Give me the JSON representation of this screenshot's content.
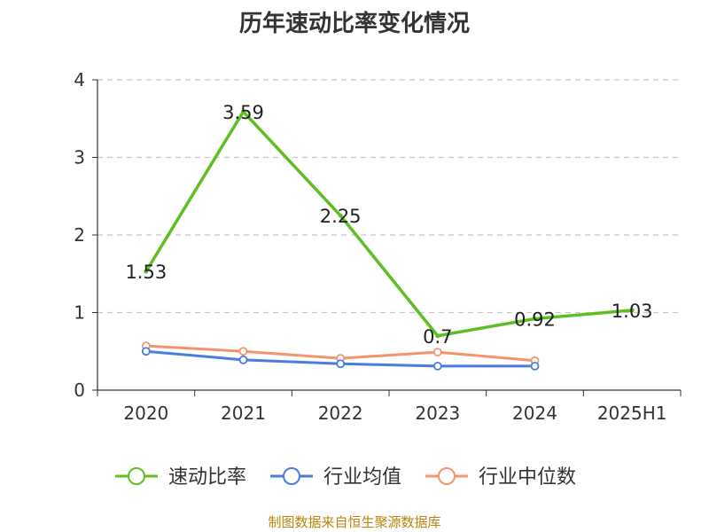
{
  "title": "历年速动比率变化情况",
  "footer": "制图数据来自恒生聚源数据库",
  "chart_data": {
    "type": "line",
    "title": "历年速动比率变化情况",
    "categories": [
      "2020",
      "2021",
      "2022",
      "2023",
      "2024",
      "2025H1"
    ],
    "ylim": [
      0,
      4
    ],
    "yticks": [
      "0",
      "1",
      "2",
      "3",
      "4"
    ],
    "grid": true,
    "legend_position": "bottom",
    "series": [
      {
        "name": "速动比率",
        "color": "#5fbf22",
        "values": [
          1.53,
          3.59,
          2.25,
          0.7,
          0.92,
          1.03
        ],
        "labels": [
          "1.53",
          "3.59",
          "2.25",
          "0.7",
          "0.92",
          "1.03"
        ],
        "show_labels": true
      },
      {
        "name": "行业均值",
        "color": "#4a7ede",
        "values": [
          0.5,
          0.39,
          0.34,
          0.31,
          0.31,
          null
        ],
        "show_labels": false
      },
      {
        "name": "行业中位数",
        "color": "#f5936a",
        "values": [
          0.57,
          0.5,
          0.41,
          0.49,
          0.38,
          null
        ],
        "show_labels": false
      }
    ]
  }
}
